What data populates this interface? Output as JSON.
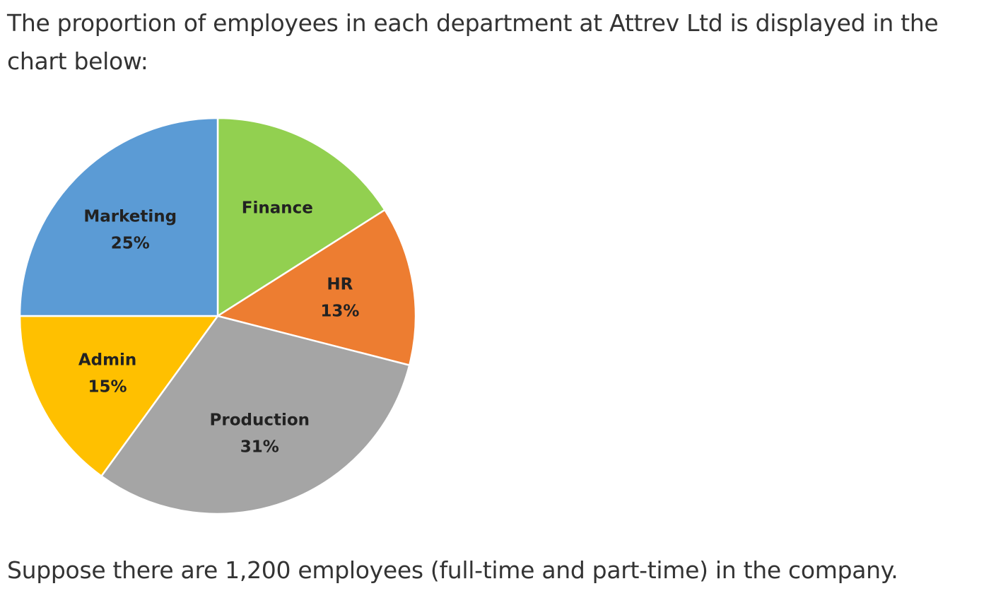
{
  "text": {
    "intro": "The proportion of employees in each department at Attrev Ltd is displayed in the chart below:",
    "footnote": "Suppose there are 1,200 employees (full-time and part-time) in the company."
  },
  "chart_data": {
    "type": "pie",
    "title": "",
    "start": "12 o'clock, clockwise",
    "slices": [
      {
        "label": "Finance",
        "value": 16,
        "value_label": "",
        "color": "#92D050"
      },
      {
        "label": "HR",
        "value": 13,
        "value_label": "13%",
        "color": "#ED7D31"
      },
      {
        "label": "Production",
        "value": 31,
        "value_label": "31%",
        "color": "#A5A5A5"
      },
      {
        "label": "Admin",
        "value": 15,
        "value_label": "15%",
        "color": "#FFC000"
      },
      {
        "label": "Marketing",
        "value": 25,
        "value_label": "25%",
        "color": "#5B9BD5"
      }
    ],
    "legend": "none"
  }
}
